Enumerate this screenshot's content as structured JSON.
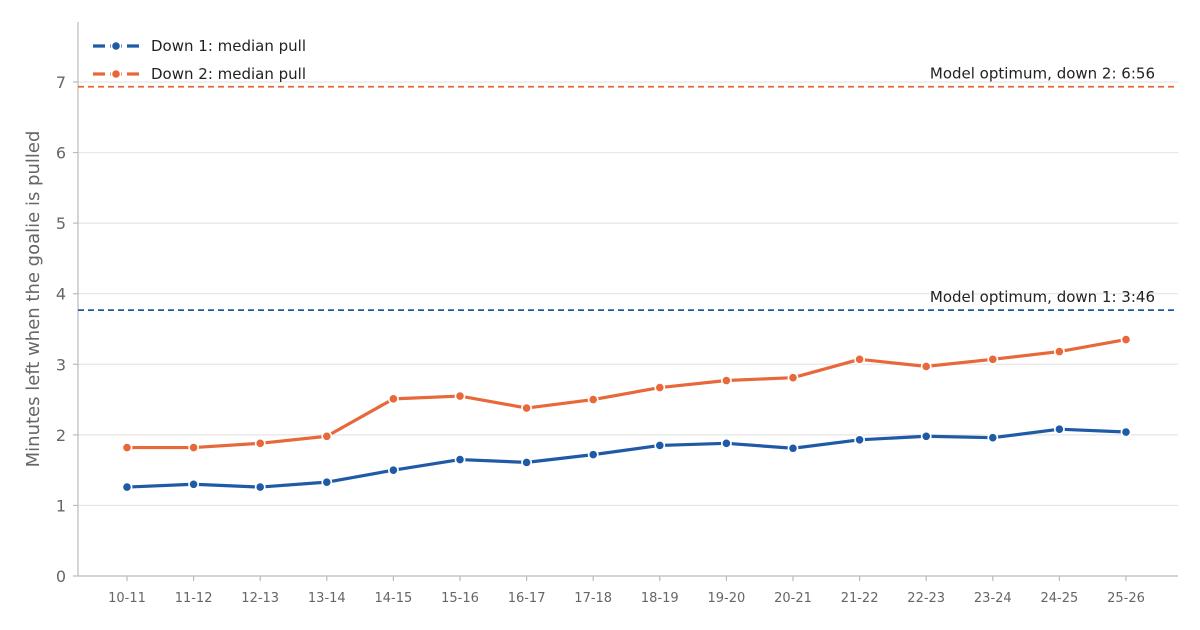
{
  "chart_data": {
    "type": "line",
    "categories": [
      "10-11",
      "11-12",
      "12-13",
      "13-14",
      "14-15",
      "15-16",
      "16-17",
      "17-18",
      "18-19",
      "19-20",
      "20-21",
      "21-22",
      "22-23",
      "23-24",
      "24-25",
      "25-26"
    ],
    "series": [
      {
        "name": "Down 1: median pull",
        "color": "#1f5aa6",
        "values": [
          1.26,
          1.3,
          1.26,
          1.33,
          1.5,
          1.65,
          1.61,
          1.72,
          1.85,
          1.88,
          1.81,
          1.93,
          1.98,
          1.96,
          2.08,
          2.04
        ]
      },
      {
        "name": "Down 2: median pull",
        "color": "#e8683a",
        "values": [
          1.82,
          1.82,
          1.88,
          1.98,
          2.51,
          2.55,
          2.38,
          2.5,
          2.67,
          2.77,
          2.81,
          3.07,
          2.97,
          3.07,
          3.18,
          3.35
        ]
      }
    ],
    "reference_lines": [
      {
        "label": "Model optimum, down 2: 6:56",
        "value": 6.933,
        "color": "#e8683a"
      },
      {
        "label": "Model optimum, down 1: 3:46",
        "value": 3.767,
        "color": "#1f5aa6"
      }
    ],
    "yticks": [
      0,
      1,
      2,
      3,
      4,
      5,
      6,
      7
    ],
    "ylim": [
      0,
      7.85
    ],
    "title": "",
    "xlabel": "",
    "ylabel": "Minutes left when the goalie is pulled",
    "grid": "horizontal",
    "legend_position": "top-left"
  }
}
